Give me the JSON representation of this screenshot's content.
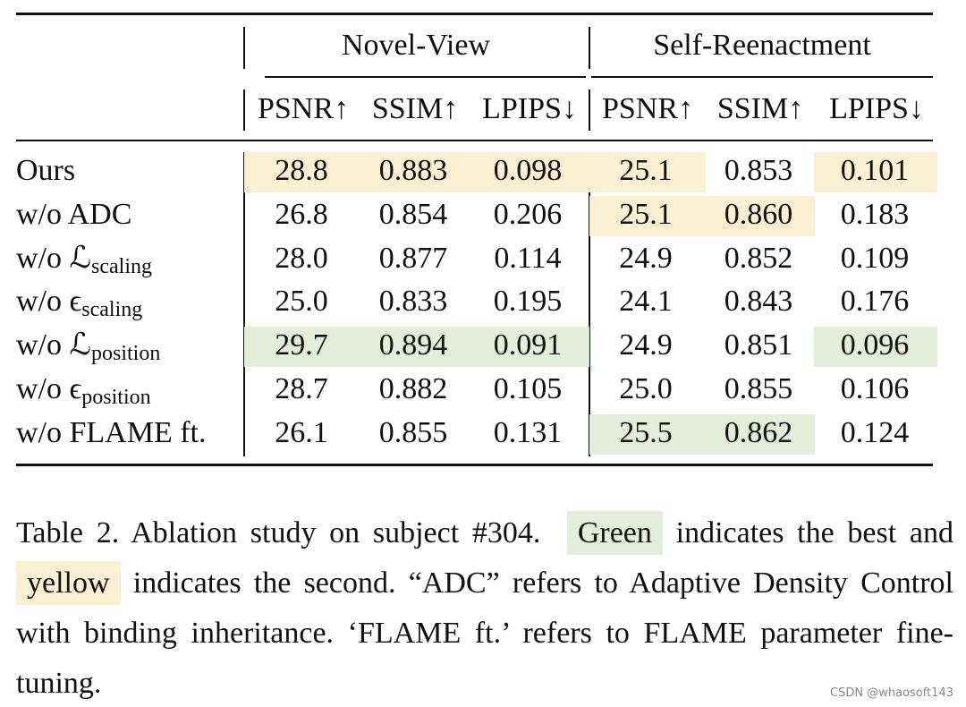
{
  "table": {
    "groups": [
      "Novel-View",
      "Self-Reenactment"
    ],
    "columns": [
      "PSNR↑",
      "SSIM↑",
      "LPIPS↓",
      "PSNR↑",
      "SSIM↑",
      "LPIPS↓"
    ],
    "colors": {
      "best": "#e3efdb",
      "second": "#fcf0d2"
    },
    "rows": [
      {
        "label": "Ours",
        "cells": [
          {
            "text": "28.8",
            "mark": "second"
          },
          {
            "text": "0.883",
            "mark": "second"
          },
          {
            "text": "0.098",
            "mark": "second"
          },
          {
            "text": "25.1",
            "mark": "second"
          },
          {
            "text": "0.853"
          },
          {
            "text": "0.101",
            "mark": "second"
          }
        ]
      },
      {
        "label": "w/o ADC",
        "cells": [
          {
            "text": "26.8"
          },
          {
            "text": "0.854"
          },
          {
            "text": "0.206"
          },
          {
            "text": "25.1",
            "mark": "second"
          },
          {
            "text": "0.860",
            "mark": "second"
          },
          {
            "text": "0.183"
          }
        ]
      },
      {
        "label": "w/o ℒ",
        "sub": "scaling",
        "cells": [
          {
            "text": "28.0"
          },
          {
            "text": "0.877"
          },
          {
            "text": "0.114"
          },
          {
            "text": "24.9"
          },
          {
            "text": "0.852"
          },
          {
            "text": "0.109"
          }
        ]
      },
      {
        "label": "w/o ϵ",
        "sub": "scaling",
        "cells": [
          {
            "text": "25.0"
          },
          {
            "text": "0.833"
          },
          {
            "text": "0.195"
          },
          {
            "text": "24.1"
          },
          {
            "text": "0.843"
          },
          {
            "text": "0.176"
          }
        ]
      },
      {
        "label": "w/o ℒ",
        "sub": "position",
        "cells": [
          {
            "text": "29.7",
            "mark": "best"
          },
          {
            "text": "0.894",
            "mark": "best"
          },
          {
            "text": "0.091",
            "mark": "best"
          },
          {
            "text": "24.9"
          },
          {
            "text": "0.851"
          },
          {
            "text": "0.096",
            "mark": "best"
          }
        ]
      },
      {
        "label": "w/o ϵ",
        "sub": "position",
        "cells": [
          {
            "text": "28.7"
          },
          {
            "text": "0.882"
          },
          {
            "text": "0.105"
          },
          {
            "text": "25.0"
          },
          {
            "text": "0.855"
          },
          {
            "text": "0.106"
          }
        ]
      },
      {
        "label": "w/o FLAME ft.",
        "cells": [
          {
            "text": "26.1"
          },
          {
            "text": "0.855"
          },
          {
            "text": "0.131"
          },
          {
            "text": "25.5",
            "mark": "best"
          },
          {
            "text": "0.862",
            "mark": "best"
          },
          {
            "text": "0.124"
          }
        ]
      }
    ]
  },
  "caption": {
    "lead": "Table 2.  Ablation study on subject #304.",
    "best_word": "Green",
    "mid": "indicates the best and",
    "second_word": "yellow",
    "rest": "indicates the second. “ADC” refers to Adaptive Density Control with binding inheritance. ‘FLAME ft.’ refers to FLAME parameter fine-tuning."
  },
  "watermark": "CSDN @whaosoft143"
}
